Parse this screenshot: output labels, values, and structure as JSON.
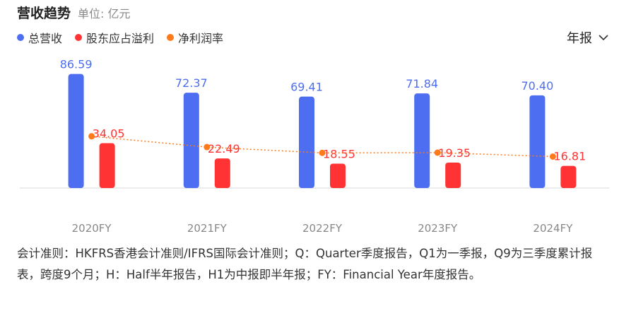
{
  "header": {
    "title": "营收趋势",
    "unit": "单位: 亿元"
  },
  "legend": [
    {
      "name": "总营收",
      "color": "#4e6ef2"
    },
    {
      "name": "股东应占溢利",
      "color": "#ff3333"
    },
    {
      "name": "净利润率",
      "color": "#ff7a1a"
    }
  ],
  "period_select": {
    "label": "年报",
    "icon": "chevron-down-icon"
  },
  "chart_data": {
    "type": "bar",
    "categories": [
      "2020FY",
      "2021FY",
      "2022FY",
      "2023FY",
      "2024FY"
    ],
    "series": [
      {
        "name": "总营收",
        "color": "#4e6ef2",
        "values": [
          86.59,
          72.37,
          69.41,
          71.84,
          70.4
        ]
      },
      {
        "name": "股东应占溢利",
        "color": "#ff3333",
        "values": [
          34.05,
          22.49,
          18.55,
          19.35,
          16.81
        ]
      },
      {
        "name": "净利润率",
        "color": "#ff7a1a",
        "type": "line",
        "style": "dotted",
        "values": [
          39.3,
          31.1,
          26.7,
          26.9,
          23.9
        ]
      }
    ],
    "ylim": [
      0,
      95
    ],
    "grid": false,
    "legend_position": "top-left"
  },
  "footnote": "会计准则：HKFRS香港会计准则/IFRS国际会计准则；Q：Quarter季度报告，Q1为一季报，Q9为三季度累计报表，跨度9个月；H：Half半年报告，H1为中报即半年报；FY：Financial Year年度报告。"
}
